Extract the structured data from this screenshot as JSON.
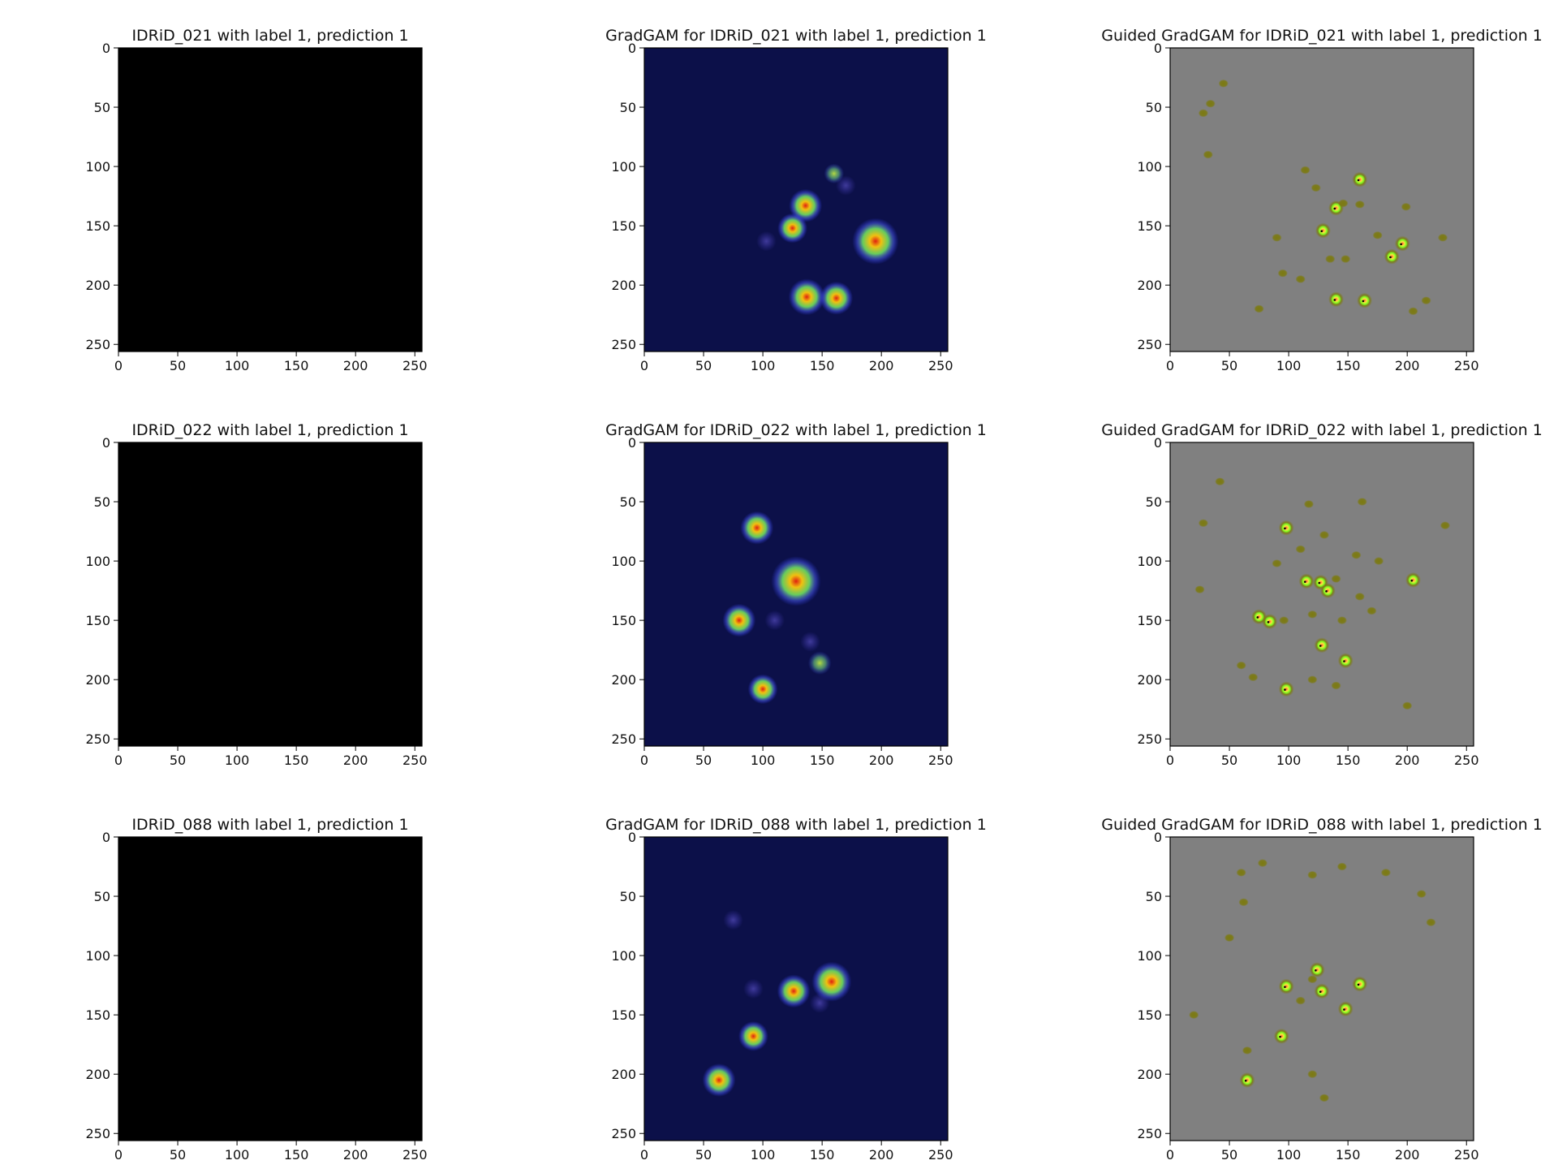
{
  "figure": {
    "panels": [
      {
        "title": "IDRiD_021 with label 1, prediction 1",
        "kind": "fundus",
        "variant": "a"
      },
      {
        "title": "GradGAM for IDRiD_021 with label 1, prediction 1",
        "kind": "gradcam",
        "variant": "a",
        "hotspots": [
          [
            136,
            133,
            1.0
          ],
          [
            125,
            152,
            0.9
          ],
          [
            195,
            163,
            1.4
          ],
          [
            137,
            210,
            1.1
          ],
          [
            162,
            211,
            1.0
          ],
          [
            160,
            106,
            0.6
          ],
          [
            103,
            163,
            0.4
          ],
          [
            170,
            116,
            0.4
          ]
        ]
      },
      {
        "title": "Guided GradGAM for IDRiD_021 with label 1, prediction 1",
        "kind": "guided",
        "variant": "a",
        "spots": [
          [
            28,
            55,
            0
          ],
          [
            34,
            47,
            0
          ],
          [
            45,
            30,
            0
          ],
          [
            32,
            90,
            0
          ],
          [
            114,
            103,
            0
          ],
          [
            123,
            118,
            0
          ],
          [
            160,
            111,
            1
          ],
          [
            140,
            135,
            1
          ],
          [
            129,
            154,
            1
          ],
          [
            196,
            165,
            1
          ],
          [
            187,
            176,
            1
          ],
          [
            140,
            212,
            1
          ],
          [
            164,
            213,
            1
          ],
          [
            205,
            222,
            0
          ],
          [
            216,
            213,
            0
          ],
          [
            146,
            131,
            0
          ],
          [
            160,
            132,
            0
          ],
          [
            199,
            134,
            0
          ],
          [
            230,
            160,
            0
          ],
          [
            90,
            160,
            0
          ],
          [
            95,
            190,
            0
          ],
          [
            110,
            195,
            0
          ],
          [
            135,
            178,
            0
          ],
          [
            75,
            220,
            0
          ],
          [
            175,
            158,
            0
          ],
          [
            148,
            178,
            0
          ]
        ]
      },
      {
        "title": "IDRiD_022 with label 1, prediction 1",
        "kind": "fundus",
        "variant": "b"
      },
      {
        "title": "GradGAM for IDRiD_022 with label 1, prediction 1",
        "kind": "gradcam",
        "variant": "b",
        "hotspots": [
          [
            95,
            72,
            1.0
          ],
          [
            128,
            117,
            1.5
          ],
          [
            80,
            150,
            1.0
          ],
          [
            100,
            208,
            0.9
          ],
          [
            148,
            186,
            0.7
          ],
          [
            140,
            168,
            0.4
          ],
          [
            110,
            150,
            0.4
          ]
        ]
      },
      {
        "title": "Guided GradGAM for IDRiD_022 with label 1, prediction 1",
        "kind": "guided",
        "variant": "b",
        "spots": [
          [
            98,
            72,
            1
          ],
          [
            115,
            117,
            1
          ],
          [
            127,
            118,
            1
          ],
          [
            133,
            125,
            1
          ],
          [
            84,
            151,
            1
          ],
          [
            75,
            147,
            1
          ],
          [
            128,
            171,
            1
          ],
          [
            148,
            184,
            1
          ],
          [
            98,
            208,
            1
          ],
          [
            205,
            116,
            1
          ],
          [
            42,
            33,
            0
          ],
          [
            28,
            68,
            0
          ],
          [
            117,
            52,
            0
          ],
          [
            162,
            50,
            0
          ],
          [
            130,
            78,
            0
          ],
          [
            110,
            90,
            0
          ],
          [
            157,
            95,
            0
          ],
          [
            176,
            100,
            0
          ],
          [
            90,
            102,
            0
          ],
          [
            140,
            115,
            0
          ],
          [
            160,
            130,
            0
          ],
          [
            170,
            142,
            0
          ],
          [
            120,
            145,
            0
          ],
          [
            145,
            150,
            0
          ],
          [
            25,
            124,
            0
          ],
          [
            60,
            188,
            0
          ],
          [
            70,
            198,
            0
          ],
          [
            120,
            200,
            0
          ],
          [
            140,
            205,
            0
          ],
          [
            200,
            222,
            0
          ],
          [
            232,
            70,
            0
          ],
          [
            96,
            150,
            0
          ]
        ]
      },
      {
        "title": "IDRiD_088 with label 1, prediction 1",
        "kind": "fundus",
        "variant": "c"
      },
      {
        "title": "GradGAM for IDRiD_088 with label 1, prediction 1",
        "kind": "gradcam",
        "variant": "c",
        "hotspots": [
          [
            126,
            130,
            1.0
          ],
          [
            158,
            122,
            1.2
          ],
          [
            92,
            168,
            0.9
          ],
          [
            63,
            205,
            1.0
          ],
          [
            92,
            128,
            0.5
          ],
          [
            148,
            140,
            0.4
          ],
          [
            75,
            70,
            0.3
          ]
        ]
      },
      {
        "title": "Guided GradGAM for IDRiD_088 with label 1, prediction 1",
        "kind": "guided",
        "variant": "c",
        "spots": [
          [
            128,
            130,
            1
          ],
          [
            160,
            124,
            1
          ],
          [
            98,
            126,
            1
          ],
          [
            94,
            168,
            1
          ],
          [
            65,
            205,
            1
          ],
          [
            124,
            112,
            1
          ],
          [
            148,
            145,
            1
          ],
          [
            60,
            30,
            0
          ],
          [
            62,
            55,
            0
          ],
          [
            78,
            22,
            0
          ],
          [
            120,
            32,
            0
          ],
          [
            145,
            25,
            0
          ],
          [
            182,
            30,
            0
          ],
          [
            212,
            48,
            0
          ],
          [
            220,
            72,
            0
          ],
          [
            50,
            85,
            0
          ],
          [
            120,
            120,
            0
          ],
          [
            110,
            138,
            0
          ],
          [
            20,
            150,
            0
          ],
          [
            65,
            180,
            0
          ],
          [
            120,
            200,
            0
          ],
          [
            130,
            220,
            0
          ]
        ]
      }
    ],
    "xticks": [
      "0",
      "50",
      "100",
      "150",
      "200",
      "250"
    ],
    "yticks": [
      "0",
      "50",
      "100",
      "150",
      "200",
      "250"
    ],
    "extent": [
      0,
      256
    ],
    "colors": {
      "background": "#000000",
      "fundus": [
        "#f09a48",
        "#d86e1e",
        "#a8460e"
      ],
      "fundus_yellow": [
        "#d8a14a",
        "#c67a2c",
        "#8a4a18"
      ],
      "vessel": "#a8281a",
      "optic_disc": "#ffc060",
      "exudate": "#f4d21e",
      "gradcam_bg": "#0a0c3a",
      "guided_bg": "#808080",
      "guided_spot": "#7c7a10",
      "guided_hot": "#80ff20"
    }
  }
}
